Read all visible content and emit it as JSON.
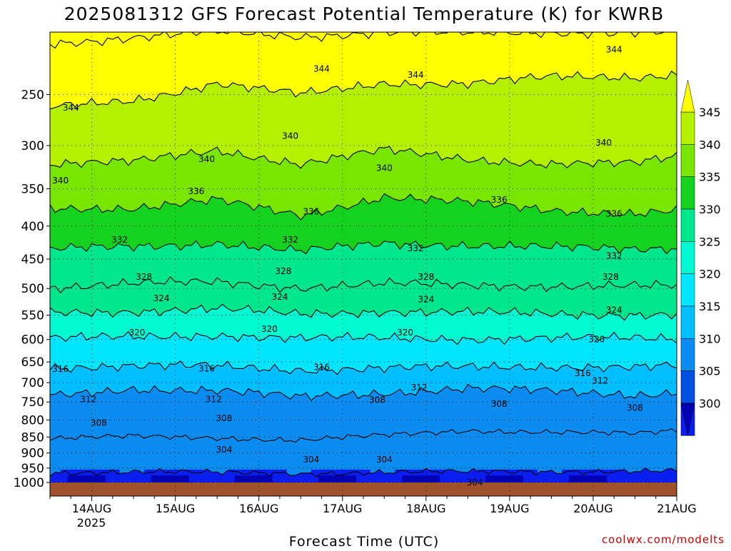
{
  "chart_data": {
    "type": "heatmap",
    "title": "2025081312 GFS Forecast Potential Temperature (K) for KWRB",
    "xlabel": "Forecast Time (UTC)",
    "ylabel": "",
    "credit": "coolwx.com/modelts",
    "x_ticks": [
      "14AUG",
      "15AUG",
      "16AUG",
      "17AUG",
      "18AUG",
      "19AUG",
      "20AUG",
      "21AUG"
    ],
    "x_year_label": "2025",
    "xlim": [
      "2025-08-13T12",
      "2025-08-21T00"
    ],
    "y_ticks": [
      250,
      300,
      350,
      400,
      450,
      500,
      550,
      600,
      650,
      700,
      750,
      800,
      850,
      900,
      950,
      1000
    ],
    "ylim": [
      1000,
      200
    ],
    "colorbar": {
      "labels": [
        345,
        340,
        335,
        330,
        325,
        320,
        315,
        310,
        305,
        300
      ],
      "colors": [
        "#ffff00",
        "#b4f000",
        "#78e600",
        "#14d21e",
        "#00e68c",
        "#00fad2",
        "#00e6ff",
        "#00beff",
        "#0a8cf0",
        "#0050e1",
        "#0a1ef0",
        "#0000b4"
      ],
      "extend": "both"
    },
    "profile_hours": [
      0,
      24,
      48,
      72,
      96,
      120,
      144,
      168,
      180
    ],
    "contour_interval": 4,
    "contours": [
      {
        "level": 304,
        "pressures": [
          965,
          962,
          966,
          968,
          964,
          963,
          961,
          960,
          960
        ]
      },
      {
        "level": 308,
        "pressures": [
          855,
          848,
          852,
          860,
          845,
          830,
          836,
          840,
          830
        ]
      },
      {
        "level": 312,
        "pressures": [
          735,
          715,
          720,
          738,
          725,
          715,
          722,
          730,
          725
        ]
      },
      {
        "level": 316,
        "pressures": [
          662,
          660,
          660,
          668,
          665,
          662,
          660,
          663,
          660
        ]
      },
      {
        "level": 320,
        "pressures": [
          598,
          595,
          590,
          598,
          597,
          598,
          598,
          597,
          597
        ]
      },
      {
        "level": 324,
        "pressures": [
          545,
          542,
          538,
          548,
          542,
          545,
          548,
          548,
          548
        ]
      },
      {
        "level": 328,
        "pressures": [
          498,
          492,
          488,
          498,
          492,
          494,
          495,
          496,
          496
        ]
      },
      {
        "level": 332,
        "pressures": [
          435,
          430,
          425,
          438,
          425,
          428,
          432,
          434,
          432
        ]
      },
      {
        "level": 336,
        "pressures": [
          375,
          375,
          365,
          385,
          360,
          368,
          378,
          382,
          378
        ]
      },
      {
        "level": 340,
        "pressures": [
          320,
          318,
          305,
          320,
          305,
          315,
          320,
          320,
          312
        ]
      },
      {
        "level": 344,
        "pressures": [
          262,
          255,
          240,
          250,
          240,
          240,
          235,
          235,
          232
        ]
      },
      {
        "level": 348,
        "pressures": [
          208,
          204,
          200,
          203,
          200,
          201,
          200,
          200,
          200
        ]
      }
    ],
    "contour_labels": [
      {
        "value": "344",
        "hour": 6,
        "p": 262
      },
      {
        "value": "344",
        "hour": 78,
        "p": 228
      },
      {
        "value": "344",
        "hour": 105,
        "p": 233
      },
      {
        "value": "344",
        "hour": 162,
        "p": 213
      },
      {
        "value": "340",
        "hour": 3,
        "p": 340
      },
      {
        "value": "340",
        "hour": 45,
        "p": 315
      },
      {
        "value": "340",
        "hour": 69,
        "p": 290
      },
      {
        "value": "340",
        "hour": 96,
        "p": 325
      },
      {
        "value": "340",
        "hour": 159,
        "p": 297
      },
      {
        "value": "336",
        "hour": 42,
        "p": 353
      },
      {
        "value": "336",
        "hour": 75,
        "p": 380
      },
      {
        "value": "336",
        "hour": 129,
        "p": 364
      },
      {
        "value": "336",
        "hour": 162,
        "p": 383
      },
      {
        "value": "332",
        "hour": 20,
        "p": 420
      },
      {
        "value": "332",
        "hour": 69,
        "p": 420
      },
      {
        "value": "332",
        "hour": 105,
        "p": 433
      },
      {
        "value": "332",
        "hour": 162,
        "p": 445
      },
      {
        "value": "328",
        "hour": 27,
        "p": 480
      },
      {
        "value": "328",
        "hour": 67,
        "p": 470
      },
      {
        "value": "328",
        "hour": 108,
        "p": 480
      },
      {
        "value": "328",
        "hour": 161,
        "p": 480
      },
      {
        "value": "324",
        "hour": 32,
        "p": 518
      },
      {
        "value": "324",
        "hour": 66,
        "p": 515
      },
      {
        "value": "324",
        "hour": 108,
        "p": 520
      },
      {
        "value": "324",
        "hour": 162,
        "p": 540
      },
      {
        "value": "320",
        "hour": 25,
        "p": 585
      },
      {
        "value": "320",
        "hour": 63,
        "p": 578
      },
      {
        "value": "320",
        "hour": 102,
        "p": 585
      },
      {
        "value": "320",
        "hour": 157,
        "p": 600
      },
      {
        "value": "316",
        "hour": 3,
        "p": 667
      },
      {
        "value": "316",
        "hour": 45,
        "p": 666
      },
      {
        "value": "316",
        "hour": 78,
        "p": 662
      },
      {
        "value": "316",
        "hour": 153,
        "p": 677
      },
      {
        "value": "312",
        "hour": 11,
        "p": 743
      },
      {
        "value": "312",
        "hour": 47,
        "p": 743
      },
      {
        "value": "312",
        "hour": 106,
        "p": 712
      },
      {
        "value": "312",
        "hour": 158,
        "p": 695
      },
      {
        "value": "308",
        "hour": 14,
        "p": 808
      },
      {
        "value": "308",
        "hour": 50,
        "p": 795
      },
      {
        "value": "308",
        "hour": 94,
        "p": 745
      },
      {
        "value": "308",
        "hour": 129,
        "p": 755
      },
      {
        "value": "308",
        "hour": 168,
        "p": 766
      },
      {
        "value": "304",
        "hour": 50,
        "p": 889
      },
      {
        "value": "304",
        "hour": 75,
        "p": 922
      },
      {
        "value": "304",
        "hour": 96,
        "p": 922
      },
      {
        "value": "304",
        "hour": 122,
        "p": 1000
      }
    ],
    "grid": true,
    "ground": "below 1000 hPa"
  }
}
